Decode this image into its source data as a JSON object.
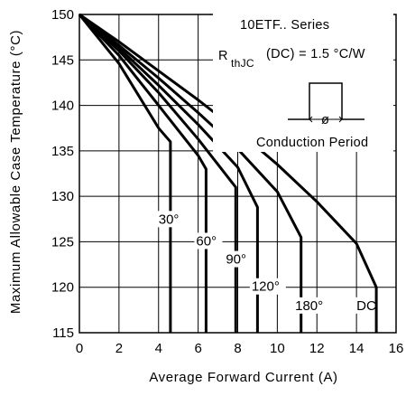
{
  "chart_data": {
    "type": "line",
    "title": "",
    "xlabel": "Average Forward Current (A)",
    "ylabel": "Maximum Allowable Case Temperature (°C)",
    "xlim": [
      0,
      16
    ],
    "ylim": [
      115,
      150
    ],
    "xticks": [
      "0",
      "2",
      "4",
      "6",
      "8",
      "10",
      "12",
      "14",
      "16"
    ],
    "yticks": [
      "115",
      "120",
      "125",
      "130",
      "135",
      "140",
      "145",
      "150"
    ],
    "grid": true,
    "annotations": {
      "series_line": "10ETF.. Series",
      "rth_r": "R",
      "rth_sub": "thJC",
      "rth_rest": "(DC) = 1.5 °C/W",
      "phi": "ø",
      "conduction": "Conduction Period"
    },
    "series": [
      {
        "label": "30°",
        "x": [
          0,
          2,
          4,
          4.6,
          4.6
        ],
        "y": [
          150,
          144.6,
          137.5,
          136,
          115
        ]
      },
      {
        "label": "60°",
        "x": [
          0,
          2,
          4,
          6,
          6.4,
          6.4
        ],
        "y": [
          150,
          145.5,
          140,
          134.5,
          133,
          115
        ]
      },
      {
        "label": "90°",
        "x": [
          0,
          2,
          4,
          6,
          7.9,
          7.9
        ],
        "y": [
          150,
          146,
          141.4,
          136.3,
          131,
          115
        ]
      },
      {
        "label": "120°",
        "x": [
          0,
          2,
          4,
          6,
          8,
          9,
          9
        ],
        "y": [
          150,
          146.3,
          142.2,
          137.9,
          133.2,
          128.8,
          115
        ]
      },
      {
        "label": "180°",
        "x": [
          0,
          2,
          4,
          6,
          8,
          10,
          11.2,
          11.2
        ],
        "y": [
          150,
          146.6,
          143,
          139.2,
          135.2,
          130.5,
          125.5,
          115
        ]
      },
      {
        "label": "DC",
        "x": [
          0,
          2,
          4,
          6,
          8,
          10,
          12,
          14,
          15,
          15
        ],
        "y": [
          150,
          147,
          143.8,
          140.6,
          137.2,
          133.5,
          129.4,
          124.8,
          120,
          115
        ]
      }
    ],
    "curve_labels": [
      {
        "text": "30°",
        "x": 4.0,
        "y": 127
      },
      {
        "text": "60°",
        "x": 5.9,
        "y": 124.6
      },
      {
        "text": "90°",
        "x": 7.4,
        "y": 122.6
      },
      {
        "text": "120°",
        "x": 8.7,
        "y": 119.6
      },
      {
        "text": "180°",
        "x": 10.9,
        "y": 117.5
      },
      {
        "text": "DC",
        "x": 14.0,
        "y": 117.5
      }
    ]
  }
}
